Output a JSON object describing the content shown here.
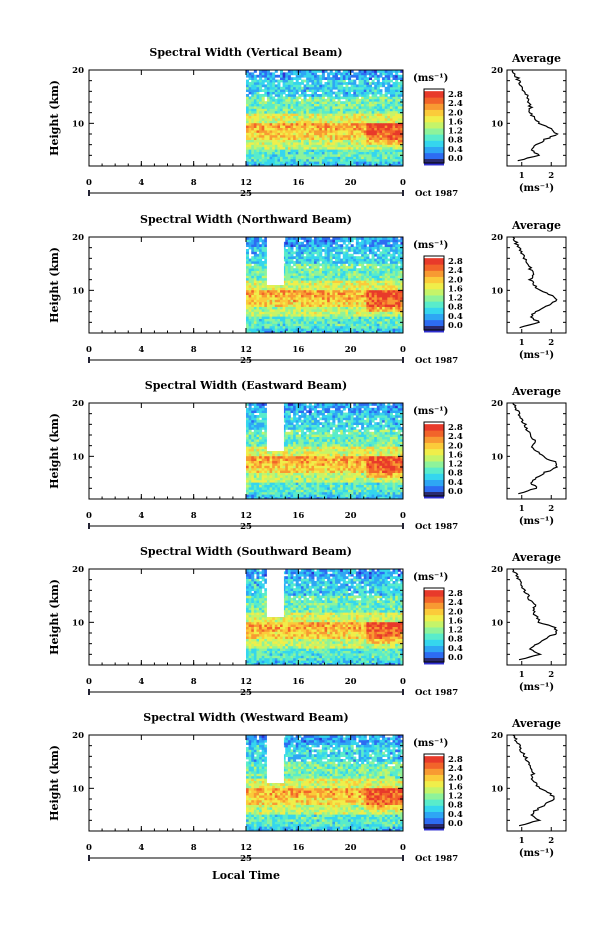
{
  "figure": {
    "xlabel": "Local Time",
    "date_label": "Oct 1987",
    "day_label": "25",
    "height_axis_label": "Height (km)",
    "unit_label": "(ms⁻¹)",
    "average_title": "Average",
    "colorbar_ticks": [
      "2.8",
      "2.4",
      "2.0",
      "1.6",
      "1.2",
      "0.8",
      "0.4",
      "0.0"
    ],
    "colorbar_colors": [
      "#2a2a6e",
      "#2f2fd0",
      "#2d6cf2",
      "#2ea6f4",
      "#35d6ee",
      "#59eccb",
      "#8ef39a",
      "#c5f469",
      "#f0ee4a",
      "#fbcb3a",
      "#f89a32",
      "#f2642a",
      "#e83a2a"
    ]
  },
  "chart_data": [
    {
      "type": "heatmap",
      "title": "Spectral Width (Vertical Beam)",
      "x_ticks": [
        "0",
        "4",
        "8",
        "12",
        "16",
        "20",
        "0"
      ],
      "xlim": [
        0,
        24
      ],
      "ylim": [
        2,
        20
      ],
      "y_ticks": [
        "20",
        "10"
      ],
      "data_start_hour": 12,
      "has_gap": false,
      "profile": {
        "ylabel": "Average",
        "xlabel": "(ms⁻¹)",
        "x_ticks": [
          "1",
          "2"
        ],
        "xlim": [
          0.5,
          2.5
        ],
        "heights": [
          3,
          4,
          5,
          6,
          7,
          8,
          9,
          10,
          11,
          12,
          13,
          14,
          15,
          16,
          17,
          18,
          19,
          20
        ],
        "values": [
          0.9,
          1.6,
          1.3,
          1.5,
          1.8,
          2.2,
          2.0,
          1.6,
          1.4,
          1.3,
          1.3,
          1.25,
          1.2,
          1.1,
          1.0,
          0.9,
          0.8,
          0.7
        ]
      }
    },
    {
      "type": "heatmap",
      "title": "Spectral Width (Northward Beam)",
      "x_ticks": [
        "0",
        "4",
        "8",
        "12",
        "16",
        "20",
        "0"
      ],
      "xlim": [
        0,
        24
      ],
      "ylim": [
        2,
        20
      ],
      "y_ticks": [
        "20",
        "10"
      ],
      "data_start_hour": 12,
      "has_gap": true,
      "profile": {
        "ylabel": "Average",
        "xlabel": "(ms⁻¹)",
        "x_ticks": [
          "1",
          "2"
        ],
        "xlim": [
          0.5,
          2.5
        ],
        "heights": [
          3,
          4,
          5,
          6,
          7,
          8,
          9,
          10,
          11,
          12,
          13,
          14,
          15,
          16,
          17,
          18,
          19,
          20
        ],
        "values": [
          0.9,
          1.6,
          1.3,
          1.5,
          1.8,
          2.2,
          2.0,
          1.6,
          1.4,
          1.3,
          1.45,
          1.3,
          1.2,
          1.1,
          1.0,
          0.9,
          0.8,
          0.7
        ]
      }
    },
    {
      "type": "heatmap",
      "title": "Spectral Width (Eastward Beam)",
      "x_ticks": [
        "0",
        "4",
        "8",
        "12",
        "16",
        "20",
        "0"
      ],
      "xlim": [
        0,
        24
      ],
      "ylim": [
        2,
        20
      ],
      "y_ticks": [
        "20",
        "10"
      ],
      "data_start_hour": 12,
      "has_gap": true,
      "profile": {
        "ylabel": "Average",
        "xlabel": "(ms⁻¹)",
        "x_ticks": [
          "1",
          "2"
        ],
        "xlim": [
          0.5,
          2.5
        ],
        "heights": [
          3,
          4,
          5,
          6,
          7,
          8,
          9,
          10,
          11,
          12,
          13,
          14,
          15,
          16,
          17,
          18,
          19,
          20
        ],
        "values": [
          0.9,
          1.5,
          1.3,
          1.5,
          1.8,
          2.2,
          2.1,
          1.7,
          1.5,
          1.35,
          1.45,
          1.3,
          1.2,
          1.1,
          1.0,
          0.9,
          0.8,
          0.7
        ]
      }
    },
    {
      "type": "heatmap",
      "title": "Spectral Width (Southward Beam)",
      "x_ticks": [
        "0",
        "4",
        "8",
        "12",
        "16",
        "20",
        "0"
      ],
      "xlim": [
        0,
        24
      ],
      "ylim": [
        2,
        20
      ],
      "y_ticks": [
        "20",
        "10"
      ],
      "data_start_hour": 12,
      "has_gap": true,
      "profile": {
        "ylabel": "Average",
        "xlabel": "(ms⁻¹)",
        "x_ticks": [
          "1",
          "2"
        ],
        "xlim": [
          0.5,
          2.5
        ],
        "heights": [
          3,
          4,
          5,
          6,
          7,
          8,
          9,
          10,
          11,
          12,
          13,
          14,
          15,
          16,
          17,
          18,
          19,
          20
        ],
        "values": [
          0.9,
          1.6,
          1.3,
          1.5,
          1.8,
          2.2,
          2.1,
          1.6,
          1.5,
          1.4,
          1.45,
          1.3,
          1.2,
          1.1,
          1.0,
          0.9,
          0.8,
          0.7
        ]
      }
    },
    {
      "type": "heatmap",
      "title": "Spectral Width (Westward Beam)",
      "x_ticks": [
        "0",
        "4",
        "8",
        "12",
        "16",
        "20",
        "0"
      ],
      "xlim": [
        0,
        24
      ],
      "ylim": [
        2,
        20
      ],
      "y_ticks": [
        "20",
        "10"
      ],
      "data_start_hour": 12,
      "has_gap": true,
      "profile": {
        "ylabel": "Average",
        "xlabel": "(ms⁻¹)",
        "x_ticks": [
          "1",
          "2"
        ],
        "xlim": [
          0.5,
          2.5
        ],
        "heights": [
          3,
          4,
          5,
          6,
          7,
          8,
          9,
          10,
          11,
          12,
          13,
          14,
          15,
          16,
          17,
          18,
          19,
          20
        ],
        "values": [
          0.9,
          1.6,
          1.3,
          1.5,
          1.8,
          2.1,
          2.0,
          1.6,
          1.45,
          1.35,
          1.4,
          1.3,
          1.2,
          1.1,
          1.0,
          0.9,
          0.8,
          0.7
        ]
      }
    }
  ]
}
